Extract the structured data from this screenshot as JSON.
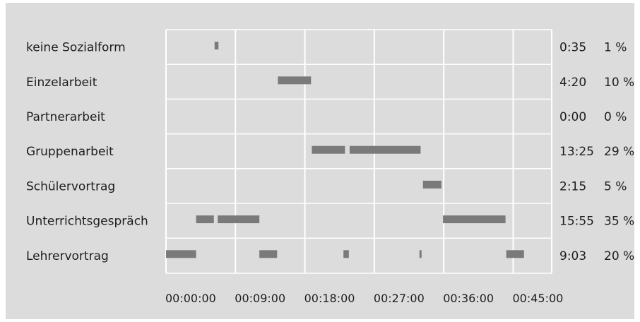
{
  "chart_data": {
    "type": "timeline",
    "colors": {
      "background": "#dcdcdc",
      "bar": "#7a7a7a",
      "grid": "#ffffff"
    },
    "x_ticks": [
      "00:00:00",
      "00:09:00",
      "00:18:00",
      "00:27:00",
      "00:36:00",
      "00:45:00"
    ],
    "x_range_minutes": [
      0,
      49
    ],
    "rows": [
      {
        "label": "keine Sozialform",
        "duration": "0:35",
        "percent": "1 %",
        "segments": [
          [
            6.3,
            6.8
          ]
        ]
      },
      {
        "label": "Einzelarbeit",
        "duration": "4:20",
        "percent": "10 %",
        "segments": [
          [
            14.5,
            18.8
          ]
        ]
      },
      {
        "label": "Partnerarbeit",
        "duration": "0:00",
        "percent": "0 %",
        "segments": []
      },
      {
        "label": "Gruppenarbeit",
        "duration": "13:25",
        "percent": "29 %",
        "segments": [
          [
            18.9,
            23.2
          ],
          [
            23.8,
            33.0
          ]
        ]
      },
      {
        "label": "Schülervortrag",
        "duration": "2:15",
        "percent": "5 %",
        "segments": [
          [
            33.3,
            35.7
          ]
        ]
      },
      {
        "label": "Unterrichtsgespräch",
        "duration": "15:55",
        "percent": "35 %",
        "segments": [
          [
            3.9,
            6.2
          ],
          [
            6.7,
            12.1
          ],
          [
            35.9,
            44.0
          ]
        ]
      },
      {
        "label": "Lehrervortrag",
        "duration": "9:03",
        "percent": "20 %",
        "segments": [
          [
            0,
            3.9
          ],
          [
            12.1,
            14.4
          ],
          [
            23.0,
            23.7
          ],
          [
            32.85,
            33.1
          ],
          [
            44.1,
            46.4
          ]
        ]
      }
    ]
  }
}
